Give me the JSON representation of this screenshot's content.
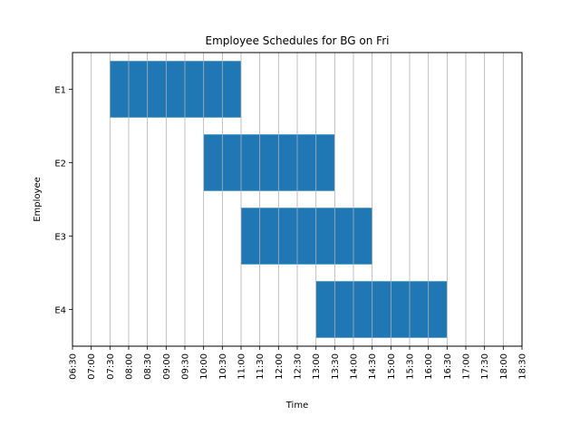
{
  "chart_data": {
    "type": "gantt",
    "title": "Employee Schedules for BG on Fri",
    "xlabel": "Time",
    "ylabel": "Employee",
    "x_ticks": [
      "06:30",
      "07:00",
      "07:30",
      "08:00",
      "08:30",
      "09:00",
      "09:30",
      "10:00",
      "10:30",
      "11:00",
      "11:30",
      "12:00",
      "12:30",
      "13:00",
      "13:30",
      "14:00",
      "14:30",
      "15:00",
      "15:30",
      "16:00",
      "16:30",
      "17:00",
      "17:30",
      "18:00",
      "18:30"
    ],
    "xlim": [
      "06:30",
      "18:30"
    ],
    "grid": "vertical",
    "bar_color": "#1f77b4",
    "employees": [
      "E1",
      "E2",
      "E3",
      "E4"
    ],
    "shifts": [
      {
        "employee": "E1",
        "start": "07:30",
        "end": "11:00"
      },
      {
        "employee": "E2",
        "start": "10:00",
        "end": "13:30"
      },
      {
        "employee": "E3",
        "start": "11:00",
        "end": "14:30"
      },
      {
        "employee": "E4",
        "start": "13:00",
        "end": "16:30"
      }
    ]
  }
}
